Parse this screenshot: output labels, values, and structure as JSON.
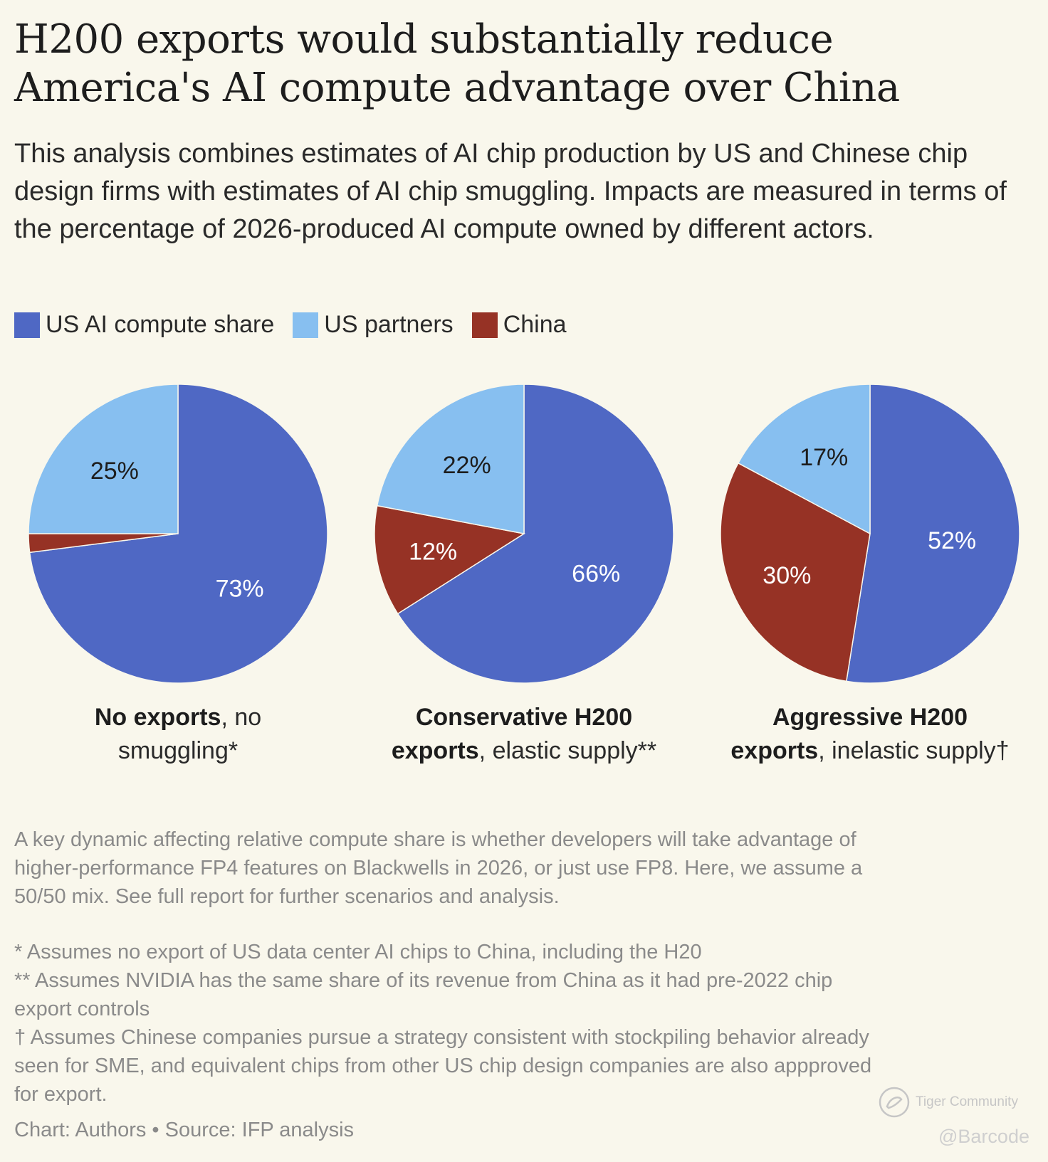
{
  "title": "H200 exports would substantially reduce America's AI compute advantage over China",
  "subtitle": "This analysis combines estimates of AI chip production by US and Chinese chip design firms with estimates of AI chip smuggling. Impacts are measured in terms of the percentage of 2026-produced AI compute owned by different actors.",
  "legend": [
    {
      "label": "US AI compute share",
      "color": "#4f68c4"
    },
    {
      "label": "US partners",
      "color": "#87bff0"
    },
    {
      "label": "China",
      "color": "#963225"
    }
  ],
  "chart_data": [
    {
      "type": "pie",
      "title_bold": "No exports",
      "title_rest": ", no smuggling*",
      "categories": [
        "US AI compute share",
        "US partners",
        "China"
      ],
      "values": [
        73,
        25,
        2
      ],
      "labels": [
        "73%",
        "25%",
        ""
      ]
    },
    {
      "type": "pie",
      "title_bold": "Conservative H200 exports",
      "title_rest": ", elastic supply**",
      "categories": [
        "US AI compute share",
        "US partners",
        "China"
      ],
      "values": [
        66,
        22,
        12
      ],
      "labels": [
        "66%",
        "22%",
        "12%"
      ]
    },
    {
      "type": "pie",
      "title_bold": "Aggressive H200 exports",
      "title_rest": ", inelastic supply†",
      "categories": [
        "US AI compute share",
        "US partners",
        "China"
      ],
      "values": [
        52,
        17,
        30
      ],
      "labels": [
        "52%",
        "17%",
        "30%"
      ]
    }
  ],
  "captions": [
    {
      "bold": "No exports",
      "rest_1": ", no",
      "rest_2": "smuggling*"
    },
    {
      "bold_1": "Conservative H200",
      "bold_2": "exports",
      "rest": ", elastic supply**"
    },
    {
      "bold_1": "Aggressive H200",
      "bold_2": "exports",
      "rest": ", inelastic supply†"
    }
  ],
  "note": "A key dynamic affecting relative compute share is whether developers will take advantage of higher-performance FP4 features on Blackwells in 2026, or just use FP8. Here, we assume a 50/50 mix. See full report for further scenarios and analysis.",
  "footnotes": [
    "* Assumes no export of US data center AI chips to China, including the H20",
    "** Assumes NVIDIA has the same share of its revenue from China as it had pre-2022 chip export controls",
    "† Assumes Chinese companies pursue a strategy consistent with stockpiling behavior already seen for SME, and equivalent chips from other US chip design companies are also appproved for export."
  ],
  "source": "Chart: Authors • Source: IFP analysis",
  "watermark": {
    "text": "Tiger Community",
    "handle": "@Barcode"
  }
}
